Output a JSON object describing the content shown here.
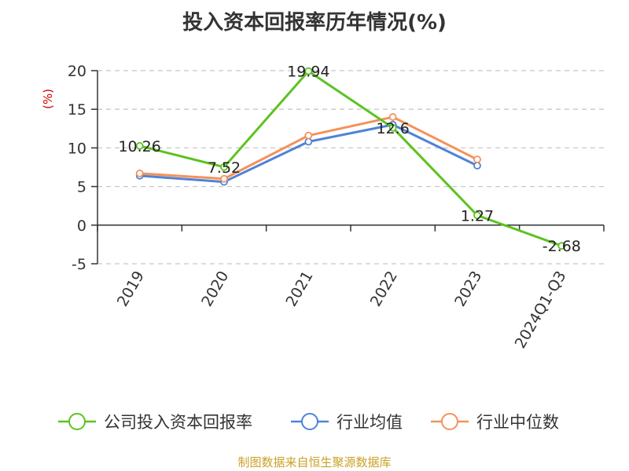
{
  "chart_data": {
    "type": "line",
    "title": "投入资本回报率历年情况(%)",
    "ylabel": "(%)",
    "categories": [
      "2019",
      "2020",
      "2021",
      "2022",
      "2023",
      "2024Q1-Q3"
    ],
    "ylim": [
      -5,
      20
    ],
    "yticks": [
      20,
      15,
      10,
      5,
      0,
      -5
    ],
    "grid": true,
    "legend_position": "bottom",
    "series": [
      {
        "name": "公司投入资本回报率",
        "color": "#5cc31f",
        "values": [
          10.26,
          7.52,
          19.94,
          12.6,
          1.27,
          -2.68
        ],
        "labels": [
          "10.26",
          "7.52",
          "19.94",
          "12.6",
          "1.27",
          "-2.68"
        ]
      },
      {
        "name": "行业均值",
        "color": "#4f83d8",
        "values": [
          6.4,
          5.6,
          10.8,
          13.0,
          7.7,
          null
        ]
      },
      {
        "name": "行业中位数",
        "color": "#f5915a",
        "values": [
          6.7,
          6.0,
          11.6,
          14.0,
          8.5,
          null
        ]
      }
    ],
    "unit_color": "#cc0000"
  },
  "source": "制图数据来自恒生聚源数据库"
}
